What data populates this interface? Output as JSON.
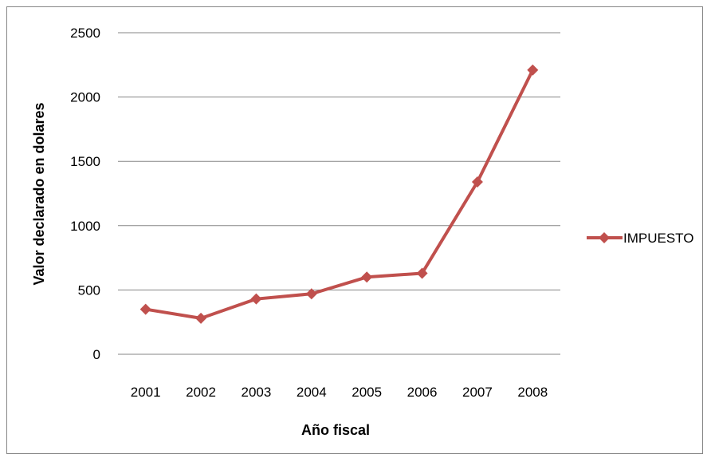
{
  "chart_data": {
    "type": "line",
    "title": "",
    "xlabel": "Año fiscal",
    "ylabel": "Valor declarado en dolares",
    "categories": [
      "2001",
      "2002",
      "2003",
      "2004",
      "2005",
      "2006",
      "2007",
      "2008"
    ],
    "series": [
      {
        "name": "IMPUESTO",
        "color": "#C0504D",
        "marker": "diamond",
        "values": [
          350,
          280,
          430,
          470,
          600,
          630,
          1340,
          2210
        ]
      }
    ],
    "ylim": [
      0,
      2500
    ],
    "yticks": [
      0,
      500,
      1000,
      1500,
      2000,
      2500
    ],
    "ytick_labels": [
      "0",
      "500",
      "1000",
      "1500",
      "2000",
      "2500"
    ],
    "grid": "horizontal",
    "legend_position": "right",
    "colors": {
      "gridline": "#868686",
      "frame": "#868686"
    }
  }
}
